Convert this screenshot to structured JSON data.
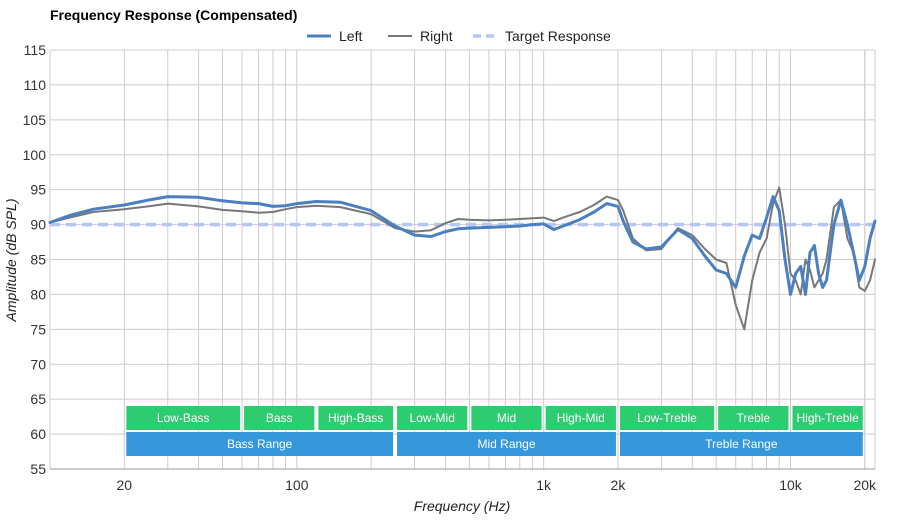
{
  "chart_data": {
    "type": "line",
    "title": "Frequency Response (Compensated)",
    "xlabel": "Frequency (Hz)",
    "ylabel": "Amplitude (dB SPL)",
    "x_scale": "log",
    "xlim": [
      10,
      22000
    ],
    "ylim": [
      55,
      115
    ],
    "y_ticks": [
      55,
      60,
      65,
      70,
      75,
      80,
      85,
      90,
      95,
      100,
      105,
      110,
      115
    ],
    "x_ticks": [
      {
        "value": 20,
        "label": "20"
      },
      {
        "value": 100,
        "label": "100"
      },
      {
        "value": 1000,
        "label": "1k"
      },
      {
        "value": 2000,
        "label": "2k"
      },
      {
        "value": 10000,
        "label": "10k"
      },
      {
        "value": 20000,
        "label": "20k"
      }
    ],
    "legend_position": "top",
    "grid": true,
    "series": [
      {
        "name": "Left",
        "color": "#4a7fc1",
        "x": [
          10,
          12,
          15,
          20,
          25,
          30,
          40,
          50,
          60,
          70,
          80,
          90,
          100,
          120,
          150,
          200,
          250,
          300,
          350,
          400,
          450,
          500,
          600,
          700,
          800,
          900,
          1000,
          1100,
          1200,
          1400,
          1600,
          1800,
          2000,
          2100,
          2300,
          2600,
          3000,
          3500,
          4000,
          4500,
          5000,
          5500,
          6000,
          6500,
          7000,
          7500,
          8000,
          8500,
          9000,
          9500,
          10000,
          10500,
          11000,
          11500,
          12000,
          12500,
          13000,
          13500,
          14000,
          15000,
          16000,
          17000,
          18000,
          19000,
          20000,
          21000,
          22000
        ],
        "y": [
          90.3,
          91.3,
          92.2,
          92.8,
          93.5,
          94.0,
          93.9,
          93.4,
          93.1,
          93.0,
          92.6,
          92.7,
          93.0,
          93.3,
          93.2,
          92.0,
          89.8,
          88.5,
          88.3,
          89.0,
          89.4,
          89.5,
          89.6,
          89.7,
          89.8,
          90.0,
          90.1,
          89.3,
          89.8,
          90.7,
          91.8,
          93.0,
          92.6,
          90.5,
          87.5,
          86.5,
          86.8,
          89.3,
          88.0,
          85.5,
          83.5,
          83.0,
          81.0,
          85.5,
          88.5,
          88.0,
          91.0,
          94.0,
          92.0,
          85.0,
          80.0,
          83.0,
          84.0,
          80.0,
          86.0,
          87.0,
          83.0,
          81.0,
          82.0,
          90.0,
          93.5,
          90.0,
          86.0,
          82.0,
          84.0,
          88.0,
          90.5
        ]
      },
      {
        "name": "Right",
        "color": "#777777",
        "x": [
          10,
          12,
          15,
          20,
          25,
          30,
          40,
          50,
          60,
          70,
          80,
          90,
          100,
          120,
          150,
          200,
          250,
          300,
          350,
          400,
          450,
          500,
          600,
          700,
          800,
          900,
          1000,
          1100,
          1200,
          1400,
          1600,
          1800,
          2000,
          2100,
          2300,
          2600,
          3000,
          3500,
          4000,
          4500,
          5000,
          5500,
          6000,
          6500,
          7000,
          7500,
          8000,
          8500,
          9000,
          9500,
          10000,
          10500,
          11000,
          11500,
          12000,
          12500,
          13000,
          13500,
          14000,
          15000,
          16000,
          17000,
          18000,
          19000,
          20000,
          21000,
          22000
        ],
        "y": [
          90.3,
          91.0,
          91.8,
          92.2,
          92.6,
          93.0,
          92.6,
          92.1,
          91.9,
          91.7,
          91.8,
          92.2,
          92.5,
          92.7,
          92.5,
          91.5,
          89.5,
          89.0,
          89.2,
          90.2,
          90.8,
          90.7,
          90.6,
          90.7,
          90.8,
          90.9,
          91.0,
          90.5,
          91.0,
          91.8,
          92.8,
          94.0,
          93.5,
          92.0,
          88.0,
          86.3,
          86.5,
          89.5,
          88.5,
          86.5,
          85.0,
          84.5,
          78.5,
          75.0,
          82.0,
          86.0,
          88.0,
          93.0,
          95.3,
          90.0,
          83.0,
          82.0,
          80.0,
          85.0,
          83.5,
          81.0,
          82.0,
          83.0,
          85.0,
          92.5,
          93.5,
          88.0,
          86.0,
          81.0,
          80.5,
          82.0,
          85.0
        ]
      },
      {
        "name": "Target Response",
        "color": "#b3c6f5",
        "dashed": true,
        "x": [
          10,
          22000
        ],
        "y": [
          90,
          90
        ]
      }
    ],
    "bands_row1": [
      {
        "label": "Low-Bass",
        "from": 20,
        "to": 60,
        "color": "#2ecc71"
      },
      {
        "label": "Bass",
        "from": 60,
        "to": 120,
        "color": "#2ecc71"
      },
      {
        "label": "High-Bass",
        "from": 120,
        "to": 250,
        "color": "#2ecc71"
      },
      {
        "label": "Low-Mid",
        "from": 250,
        "to": 500,
        "color": "#2ecc71"
      },
      {
        "label": "Mid",
        "from": 500,
        "to": 1000,
        "color": "#2ecc71"
      },
      {
        "label": "High-Mid",
        "from": 1000,
        "to": 2000,
        "color": "#2ecc71"
      },
      {
        "label": "Low-Treble",
        "from": 2000,
        "to": 5000,
        "color": "#2ecc71"
      },
      {
        "label": "Treble",
        "from": 5000,
        "to": 10000,
        "color": "#2ecc71"
      },
      {
        "label": "High-Treble",
        "from": 10000,
        "to": 20000,
        "color": "#2ecc71"
      }
    ],
    "bands_row2": [
      {
        "label": "Bass Range",
        "from": 20,
        "to": 250,
        "color": "#3498db"
      },
      {
        "label": "Mid Range",
        "from": 250,
        "to": 2000,
        "color": "#3498db"
      },
      {
        "label": "Treble Range",
        "from": 2000,
        "to": 20000,
        "color": "#3498db"
      }
    ]
  }
}
